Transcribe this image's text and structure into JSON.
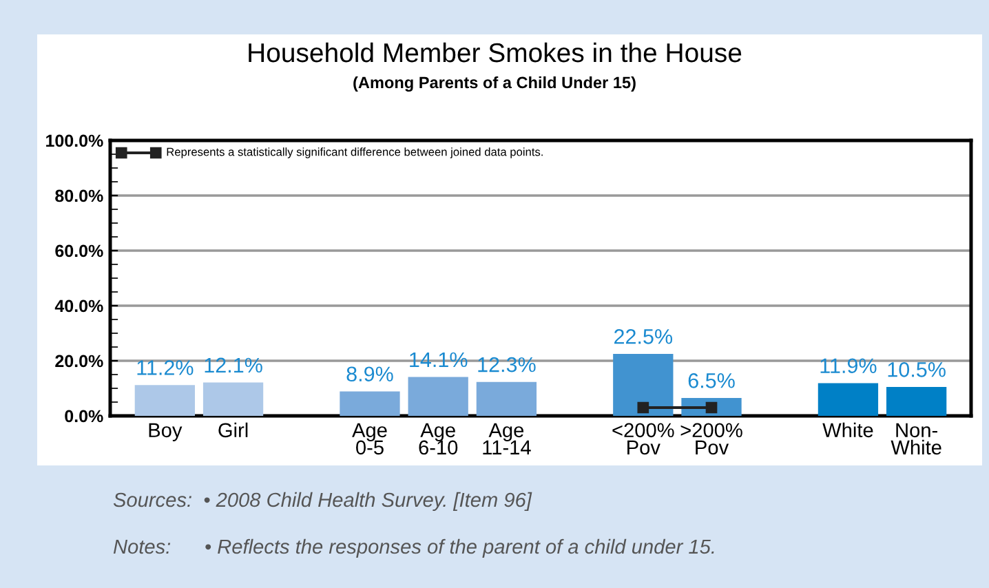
{
  "chart_data": {
    "type": "bar",
    "title": "Household Member Smokes in the House",
    "subtitle": "(Among Parents of a Child Under 15)",
    "categories": [
      "Boy",
      "Girl",
      null,
      "Age\n0-5",
      "Age\n6-10",
      "Age\n11-14",
      null,
      "<200%\nPov",
      ">200%\nPov",
      null,
      "White",
      "Non-\nWhite"
    ],
    "values": [
      11.2,
      12.1,
      null,
      8.9,
      14.1,
      12.3,
      null,
      22.5,
      6.5,
      null,
      11.9,
      10.5
    ],
    "colors": [
      "#adc8e8",
      "#adc8e8",
      null,
      "#7aaadb",
      "#7aaadb",
      "#7aaadb",
      null,
      "#4193d0",
      "#4193d0",
      null,
      "#0080c6",
      "#0080c6"
    ],
    "value_labels": [
      "11.2%",
      "12.1%",
      null,
      "8.9%",
      "14.1%",
      "12.3%",
      null,
      "22.5%",
      "6.5%",
      null,
      "11.9%",
      "10.5%"
    ],
    "ylim": [
      0,
      100
    ],
    "yticks": [
      {
        "value": 0,
        "label": "0.0%"
      },
      {
        "value": 20,
        "label": "20.0%"
      },
      {
        "value": 40,
        "label": "40.0%"
      },
      {
        "value": 60,
        "label": "60.0%"
      },
      {
        "value": 80,
        "label": "80.0%"
      },
      {
        "value": 100,
        "label": "100.0%"
      }
    ],
    "grid": "y",
    "annotations": [
      "Represents a statistically significant difference between joined data points.",
      "Sources:  • 2008 Child Health Survey. [Item 96]",
      "Notes:      • Reflects the responses of the parent of a child under 15."
    ]
  }
}
